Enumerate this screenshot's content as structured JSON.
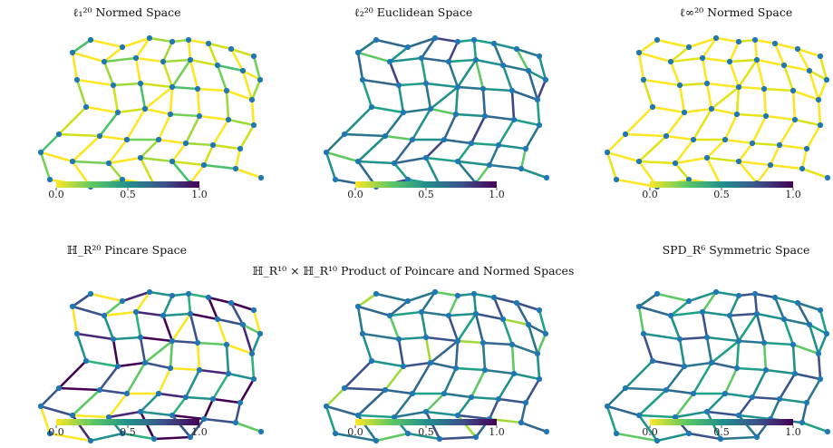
{
  "panels": [
    {
      "title": "ℓ₁²⁰ Normed Space",
      "palette": "l1"
    },
    {
      "title": "ℓ₂²⁰ Euclidean Space",
      "palette": "l2"
    },
    {
      "title": "ℓ∞²⁰ Normed Space",
      "palette": "linf"
    },
    {
      "title": "ℍ_R²⁰ Pincare Space",
      "palette": "hyp"
    },
    {
      "title": "ℍ_R¹⁰ × ℍ_R¹⁰ Product of Poincare and Normed Spaces",
      "palette": "prod"
    },
    {
      "title": "SPD_R⁶ Symmetric Space",
      "palette": "spd"
    }
  ],
  "colorbar": {
    "ticks": [
      "0.0",
      "0.5",
      "1.0"
    ],
    "colors": [
      "#fde725",
      "#5ec962",
      "#21918c",
      "#3b528b",
      "#440154"
    ]
  },
  "node_color": "#1f77b4"
}
